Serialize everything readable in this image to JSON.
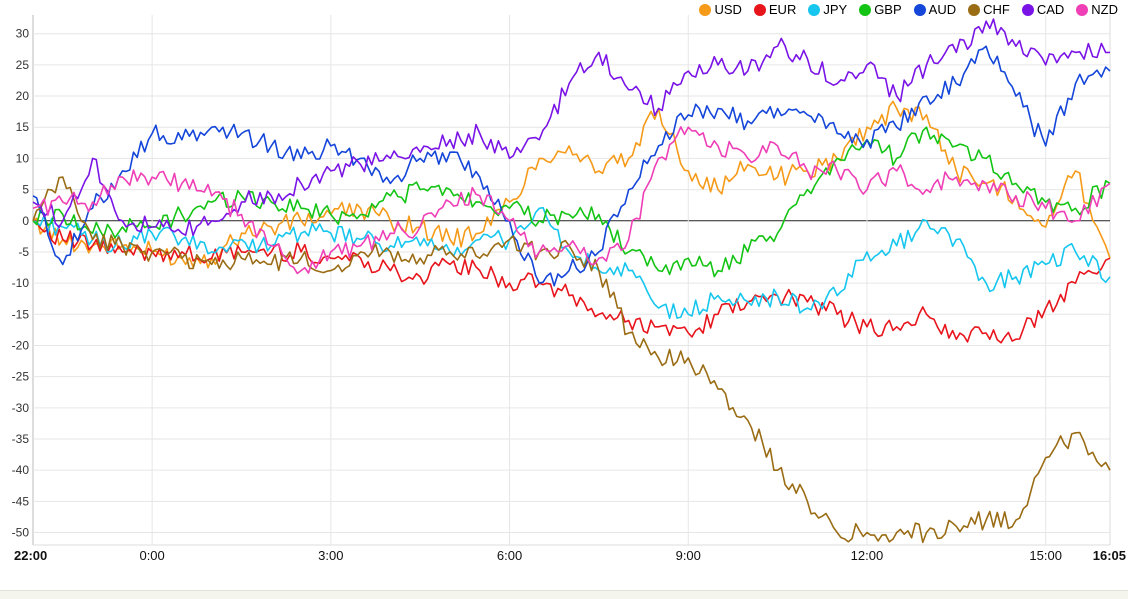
{
  "chart_data": {
    "type": "line",
    "y_ticks": [
      "30",
      "25",
      "20",
      "15",
      "10",
      "5",
      "0",
      "-5",
      "-10",
      "-15",
      "-20",
      "-25",
      "-30",
      "-35",
      "-40",
      "-45",
      "-50"
    ],
    "x_ticks": [
      {
        "label": "22:00",
        "hour": 0,
        "bold": true
      },
      {
        "label": "0:00",
        "hour": 2,
        "bold": false
      },
      {
        "label": "3:00",
        "hour": 5,
        "bold": false
      },
      {
        "label": "6:00",
        "hour": 8,
        "bold": false
      },
      {
        "label": "9:00",
        "hour": 11,
        "bold": false
      },
      {
        "label": "12:00",
        "hour": 14,
        "bold": false
      },
      {
        "label": "15:00",
        "hour": 17,
        "bold": false
      },
      {
        "label": "16:05",
        "hour": 18.08,
        "bold": true
      }
    ],
    "ylim": [
      -52,
      33
    ],
    "xlim": [
      0,
      18.08
    ],
    "grid": true,
    "legend_position": "top-right",
    "series": [
      {
        "name": "USD",
        "color": "#f59a19",
        "x": [
          0,
          0.5,
          1,
          1.5,
          2,
          2.5,
          3,
          3.5,
          4,
          4.5,
          5,
          5.5,
          6,
          6.5,
          7,
          7.5,
          8,
          8.5,
          9,
          9.5,
          10,
          10.5,
          11,
          11.5,
          12,
          12.5,
          13,
          13.5,
          14,
          14.5,
          15,
          15.5,
          16,
          16.5,
          17,
          17.5,
          18.08
        ],
        "y": [
          0,
          -3,
          -4,
          -4,
          -5,
          -6,
          -6,
          -2,
          -1,
          0,
          1,
          2,
          0,
          -1,
          -3,
          -2,
          3,
          10,
          12,
          8,
          10,
          18,
          8,
          5,
          9,
          7,
          8,
          10,
          15,
          18,
          17,
          8,
          6,
          4,
          -1,
          8,
          -6
        ]
      },
      {
        "name": "EUR",
        "color": "#e8141c",
        "x": [
          0,
          0.5,
          1,
          1.5,
          2,
          2.5,
          3,
          3.5,
          4,
          4.5,
          5,
          5.5,
          6,
          6.5,
          7,
          7.5,
          8,
          8.5,
          9,
          9.5,
          10,
          10.5,
          11,
          11.5,
          12,
          12.5,
          13,
          13.5,
          14,
          14.5,
          15,
          15.5,
          16,
          16.5,
          17,
          17.5,
          18.08
        ],
        "y": [
          0,
          -3,
          -4,
          -5,
          -5,
          -5,
          -6,
          -5,
          -5,
          -5,
          -6,
          -6,
          -8,
          -9,
          -7,
          -8,
          -10,
          -10,
          -12,
          -15,
          -16,
          -17,
          -18,
          -15,
          -13,
          -12,
          -13,
          -15,
          -17,
          -17,
          -15,
          -19,
          -18,
          -19,
          -14,
          -10,
          -6
        ]
      },
      {
        "name": "JPY",
        "color": "#16c6ee",
        "x": [
          0,
          0.5,
          1,
          1.5,
          2,
          2.5,
          3,
          3.5,
          4,
          4.5,
          5,
          5.5,
          6,
          6.5,
          7,
          7.5,
          8,
          8.5,
          9,
          9.5,
          10,
          10.5,
          11,
          11.5,
          12,
          12.5,
          13,
          13.5,
          14,
          14.5,
          15,
          15.5,
          16,
          16.5,
          17,
          17.5,
          18.08
        ],
        "y": [
          0,
          -1,
          -3,
          -4,
          -2,
          -3,
          -5,
          -3,
          -4,
          -2,
          -2,
          -3,
          -4,
          -4,
          -5,
          -3,
          -3,
          2,
          -5,
          -8,
          -8,
          -14,
          -15,
          -12,
          -13,
          -12,
          -14,
          -12,
          -5,
          -4,
          0,
          -3,
          -10,
          -9,
          -7,
          -5,
          -9
        ]
      },
      {
        "name": "GBP",
        "color": "#14c414",
        "x": [
          0,
          0.5,
          1,
          1.5,
          2,
          2.5,
          3,
          3.5,
          4,
          4.5,
          5,
          5.5,
          6,
          6.5,
          7,
          7.5,
          8,
          8.5,
          9,
          9.5,
          10,
          10.5,
          11,
          11.5,
          12,
          12.5,
          13,
          13.5,
          14,
          14.5,
          15,
          15.5,
          16,
          16.5,
          17,
          17.5,
          18.08
        ],
        "y": [
          0,
          1,
          -2,
          -1,
          -1,
          1,
          3,
          4,
          3,
          2,
          1,
          1,
          4,
          5,
          5,
          3,
          2,
          0,
          1,
          1,
          -5,
          -8,
          -6,
          -8,
          -5,
          -2,
          5,
          10,
          13,
          10,
          15,
          12,
          10,
          6,
          3,
          2,
          6
        ]
      },
      {
        "name": "AUD",
        "color": "#1446d9",
        "x": [
          0,
          0.5,
          1,
          1.5,
          2,
          2.5,
          3,
          3.5,
          4,
          4.5,
          5,
          5.5,
          6,
          6.5,
          7,
          7.5,
          8,
          8.5,
          9,
          9.5,
          10,
          10.5,
          11,
          11.5,
          12,
          12.5,
          13,
          13.5,
          14,
          14.5,
          15,
          15.5,
          16,
          16.5,
          17,
          17.5,
          18.08
        ],
        "y": [
          4,
          -7,
          2,
          8,
          14,
          13,
          15,
          14,
          12,
          10,
          12,
          10,
          6,
          10,
          11,
          7,
          0,
          -10,
          -8,
          -5,
          5,
          12,
          17,
          18,
          16,
          18,
          17,
          14,
          13,
          15,
          20,
          22,
          28,
          20,
          12,
          22,
          24
        ]
      },
      {
        "name": "CHF",
        "color": "#9a6c14",
        "x": [
          0,
          0.5,
          1,
          1.5,
          2,
          2.5,
          3,
          3.5,
          4,
          4.5,
          5,
          5.5,
          6,
          6.5,
          7,
          7.5,
          8,
          8.5,
          9,
          9.5,
          10,
          10.5,
          11,
          11.5,
          12,
          12.5,
          13,
          13.5,
          14,
          14.5,
          15,
          15.5,
          16,
          16.5,
          17,
          17.5,
          18.08
        ],
        "y": [
          0,
          7,
          -3,
          -4,
          -5,
          -6,
          -7,
          -6,
          -7,
          -6,
          -8,
          -5,
          -5,
          -6,
          -5,
          -6,
          -3,
          -5,
          -4,
          -8,
          -18,
          -22,
          -22,
          -27,
          -32,
          -40,
          -45,
          -50,
          -50,
          -50,
          -50,
          -49,
          -48,
          -48,
          -38,
          -34,
          -40
        ]
      },
      {
        "name": "CAD",
        "color": "#7a14e6",
        "x": [
          0,
          0.5,
          1,
          1.5,
          2,
          2.5,
          3,
          3.5,
          4,
          4.5,
          5,
          5.5,
          6,
          6.5,
          7,
          7.5,
          8,
          8.5,
          9,
          9.5,
          10,
          10.5,
          11,
          11.5,
          12,
          12.5,
          13,
          13.5,
          14,
          14.5,
          15,
          15.5,
          16,
          16.5,
          17,
          17.5,
          18.08
        ],
        "y": [
          3,
          0,
          10,
          0,
          -1,
          -2,
          0,
          3,
          4,
          6,
          8,
          9,
          10,
          11,
          13,
          14,
          10,
          13,
          22,
          27,
          21,
          18,
          24,
          25,
          24,
          28,
          26,
          22,
          25,
          20,
          25,
          27,
          32,
          28,
          25,
          27,
          27
        ]
      },
      {
        "name": "NZD",
        "color": "#ee3fb7",
        "x": [
          0,
          0.5,
          1,
          1.5,
          2,
          2.5,
          3,
          3.5,
          4,
          4.5,
          5,
          5.5,
          6,
          6.5,
          7,
          7.5,
          8,
          8.5,
          9,
          9.5,
          10,
          10.5,
          11,
          11.5,
          12,
          12.5,
          13,
          13.5,
          14,
          14.5,
          15,
          15.5,
          16,
          16.5,
          17,
          17.5,
          18.08
        ],
        "y": [
          2,
          3,
          3,
          7,
          7,
          6,
          4,
          1,
          -4,
          -8,
          -5,
          -4,
          -2,
          -1,
          3,
          4,
          0,
          -5,
          -4,
          -6,
          -3,
          10,
          15,
          12,
          10,
          12,
          8,
          8,
          5,
          8,
          5,
          7,
          6,
          4,
          2,
          0,
          6
        ]
      }
    ]
  }
}
